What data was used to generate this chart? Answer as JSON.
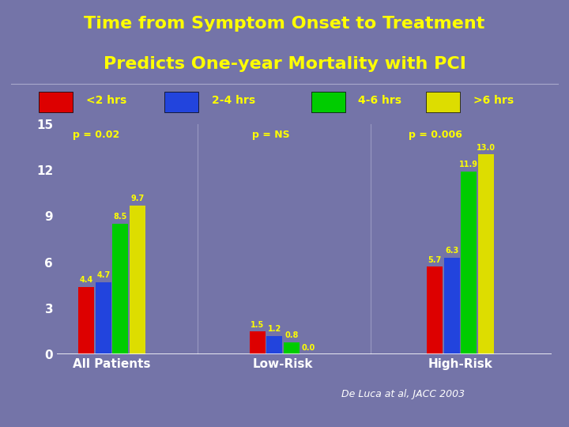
{
  "title_line1": "Time from Symptom Onset to Treatment",
  "title_line2": "Predicts One-year Mortality with PCI",
  "title_color": "#ffff00",
  "background_color": "#7474a8",
  "plot_bg_color": "#7474a8",
  "categories": [
    "All Patients",
    "Low-Risk",
    "High-Risk"
  ],
  "series_labels": [
    "<2 hrs",
    "2-4 hrs",
    "4-6 hrs",
    ">6 hrs"
  ],
  "series_colors": [
    "#dd0000",
    "#2244dd",
    "#00cc00",
    "#dddd00"
  ],
  "values": [
    [
      4.4,
      4.7,
      8.5,
      9.7
    ],
    [
      1.5,
      1.2,
      0.8,
      0.0
    ],
    [
      5.7,
      6.3,
      11.9,
      13.0
    ]
  ],
  "p_values": [
    "p = 0.02",
    "p = NS",
    "p = 0.006"
  ],
  "ylim": [
    0,
    15
  ],
  "yticks": [
    0,
    3,
    6,
    9,
    12,
    15
  ],
  "tick_color": "#ffffff",
  "axis_label_color": "#ffffff",
  "value_label_color": "#ffff00",
  "p_value_color": "#ffff00",
  "legend_text_color": "#ffff00",
  "citation": "De Luca at al, JACC 2003"
}
